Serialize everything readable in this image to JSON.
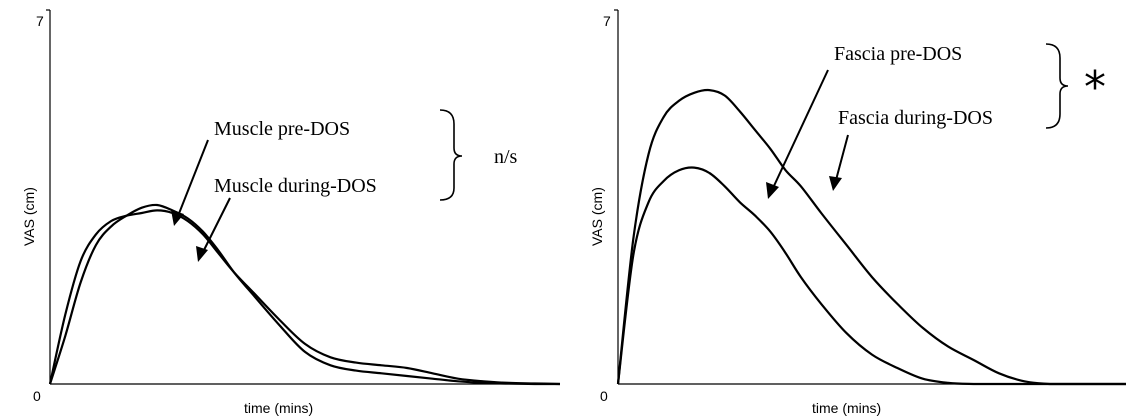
{
  "chart_data": [
    {
      "type": "line",
      "xlabel": "time (mins)",
      "ylabel": "VAS (cm)",
      "ylim": [
        0,
        7
      ],
      "y_ticks": [
        "0",
        "7"
      ],
      "grid": false,
      "x": [
        0,
        0.03,
        0.06,
        0.09,
        0.12,
        0.15,
        0.18,
        0.21,
        0.24,
        0.27,
        0.3,
        0.33,
        0.36,
        0.4,
        0.45,
        0.5,
        0.55,
        0.6,
        0.65,
        0.7,
        0.75,
        0.8,
        0.85,
        0.9,
        0.95,
        1.0
      ],
      "series": [
        {
          "values": [
            0.0,
            1.3,
            2.3,
            2.8,
            3.05,
            3.15,
            3.2,
            3.25,
            3.2,
            3.05,
            2.8,
            2.45,
            2.1,
            1.7,
            1.2,
            0.75,
            0.5,
            0.4,
            0.35,
            0.3,
            0.2,
            0.1,
            0.05,
            0.02,
            0.01,
            0.0
          ]
        },
        {
          "values": [
            0.0,
            0.9,
            1.9,
            2.6,
            2.95,
            3.15,
            3.3,
            3.35,
            3.25,
            3.1,
            2.85,
            2.5,
            2.1,
            1.65,
            1.1,
            0.6,
            0.35,
            0.25,
            0.2,
            0.15,
            0.1,
            0.05,
            0.02,
            0.01,
            0.0,
            0.0
          ]
        }
      ],
      "annotations": {
        "label_a": "Muscle pre-DOS",
        "label_b": "Muscle during-DOS",
        "significance": "n/s"
      }
    },
    {
      "type": "line",
      "xlabel": "time (mins)",
      "ylabel": "VAS (cm)",
      "ylim": [
        0,
        7
      ],
      "y_ticks": [
        "0",
        "7"
      ],
      "grid": false,
      "x": [
        0,
        0.03,
        0.06,
        0.09,
        0.12,
        0.15,
        0.18,
        0.21,
        0.24,
        0.27,
        0.3,
        0.33,
        0.36,
        0.4,
        0.45,
        0.5,
        0.55,
        0.6,
        0.65,
        0.7,
        0.75,
        0.8,
        0.85,
        0.9,
        0.95,
        1.0
      ],
      "series": [
        {
          "values": [
            0.0,
            2.4,
            3.4,
            3.8,
            4.0,
            4.05,
            3.95,
            3.7,
            3.4,
            3.15,
            2.85,
            2.45,
            2.0,
            1.5,
            0.95,
            0.55,
            0.3,
            0.1,
            0.02,
            0.0,
            0.0,
            0.0,
            0.0,
            0.0,
            0.0,
            0.0
          ]
        },
        {
          "values": [
            0.0,
            2.7,
            4.3,
            5.0,
            5.3,
            5.45,
            5.5,
            5.4,
            5.1,
            4.75,
            4.4,
            4.0,
            3.7,
            3.2,
            2.6,
            2.0,
            1.5,
            1.05,
            0.7,
            0.45,
            0.2,
            0.05,
            0.0,
            0.0,
            0.0,
            0.0
          ]
        }
      ],
      "annotations": {
        "label_a": "Fascia pre-DOS",
        "label_b": "Fascia during-DOS",
        "significance": "*"
      }
    }
  ]
}
